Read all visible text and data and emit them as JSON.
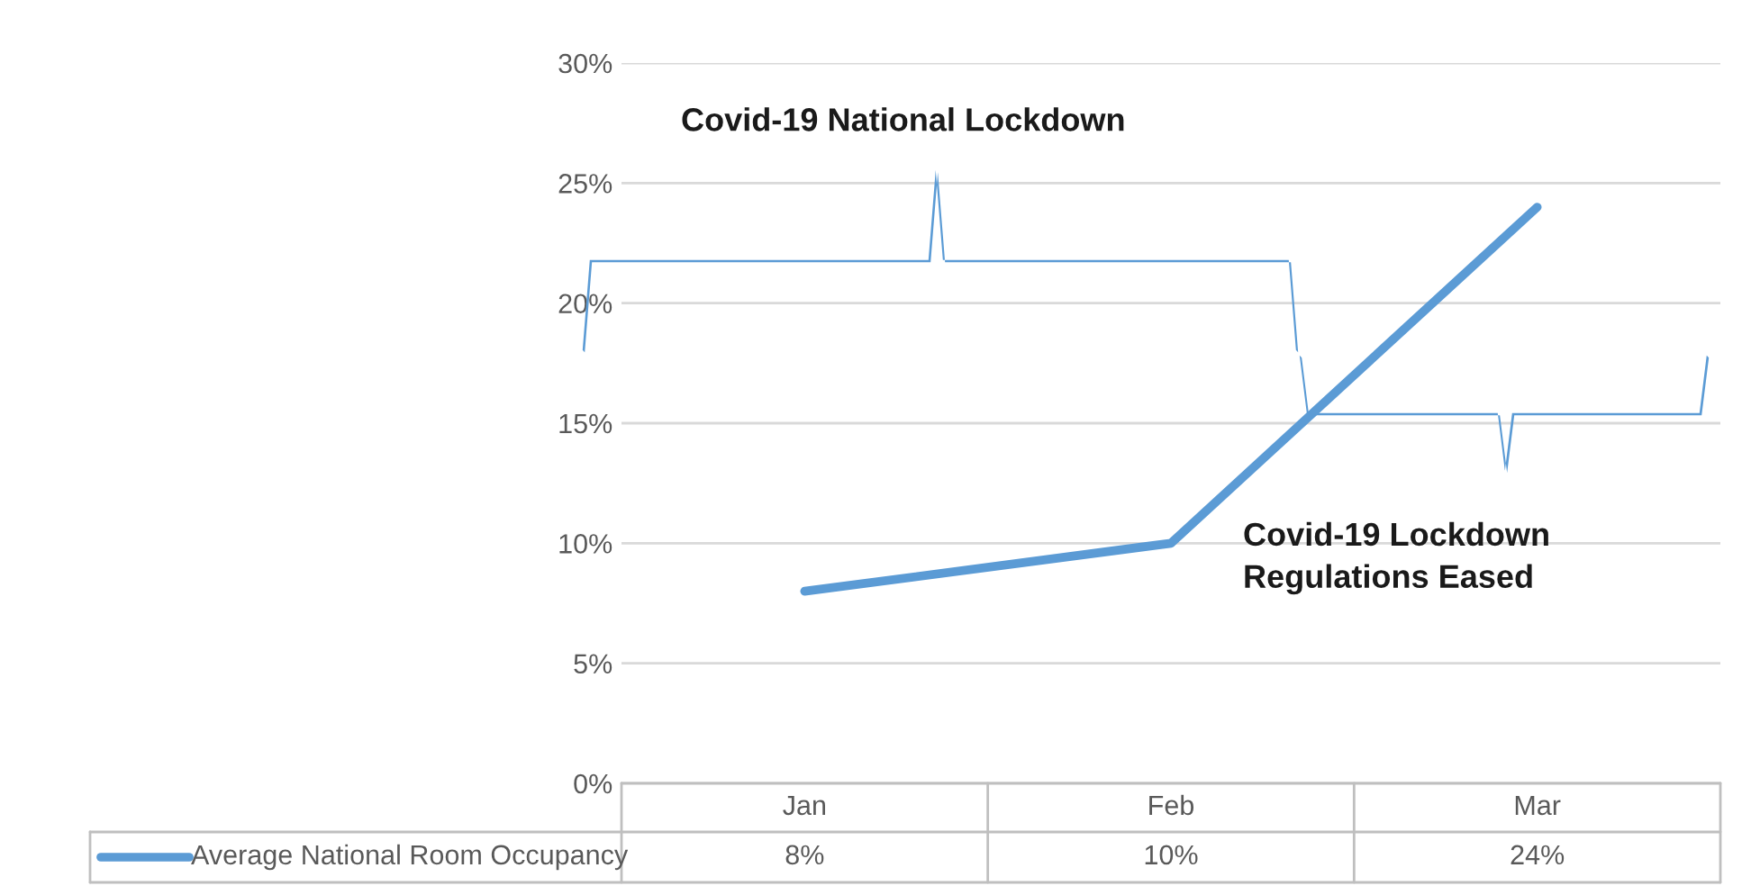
{
  "chart_data": {
    "type": "line",
    "categories": [
      "Jan",
      "Feb",
      "Mar"
    ],
    "series": [
      {
        "name": "Average National Room Occupancy",
        "color": "#5b9bd5",
        "values": [
          8,
          10,
          24
        ],
        "value_labels": [
          "8%",
          "10%",
          "24%"
        ]
      }
    ],
    "ylim": [
      0,
      30
    ],
    "yticks": [
      {
        "value": 0,
        "label": "0%"
      },
      {
        "value": 5,
        "label": "5%"
      },
      {
        "value": 10,
        "label": "10%"
      },
      {
        "value": 15,
        "label": "15%"
      },
      {
        "value": 20,
        "label": "20%"
      },
      {
        "value": 25,
        "label": "25%"
      },
      {
        "value": 30,
        "label": "30%"
      }
    ],
    "grid": "y",
    "marker": "none",
    "line_style": "solid",
    "annotations": [
      "Covid-19 National Lockdown",
      "Covid-19 Lockdown\nRegulations Eased"
    ]
  }
}
